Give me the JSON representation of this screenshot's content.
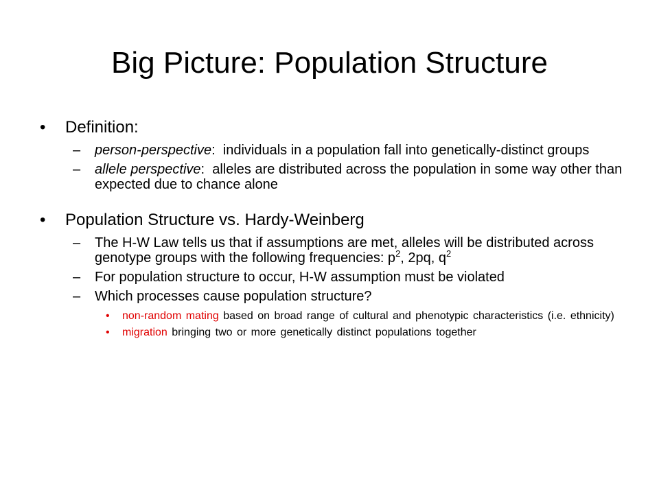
{
  "slide": {
    "title": "Big Picture:  Population Structure",
    "sections": [
      {
        "heading": "Definition:",
        "items": [
          {
            "term": "person-perspective",
            "sep": ":  ",
            "text": "individuals in a population fall into genetically-distinct groups"
          },
          {
            "term": "allele perspective",
            "sep": ":  ",
            "text": "alleles are distributed across the population in some way other than expected due to chance alone"
          }
        ]
      },
      {
        "heading": "Population Structure vs. Hardy-Weinberg",
        "items": [
          {
            "text": "The H-W Law tells us that if assumptions are met, alleles will be distributed across genotype groups with the following frequencies: p",
            "sup1": "2",
            "mid": ", 2pq, q",
            "sup2": "2"
          },
          {
            "text": "For population structure to occur, H-W assumption must be violated"
          },
          {
            "text": "Which processes cause population structure?"
          }
        ],
        "subitems": [
          {
            "highlight": "non-random mating",
            "text": " based on broad range of cultural and phenotypic characteristics (i.e. ethnicity)"
          },
          {
            "highlight": "migration",
            "text": " bringing two or more genetically distinct populations together"
          }
        ]
      }
    ],
    "symbols": {
      "bullet": "•",
      "dash": "–",
      "dot": "•"
    }
  },
  "colors": {
    "highlight": "#e00000"
  }
}
